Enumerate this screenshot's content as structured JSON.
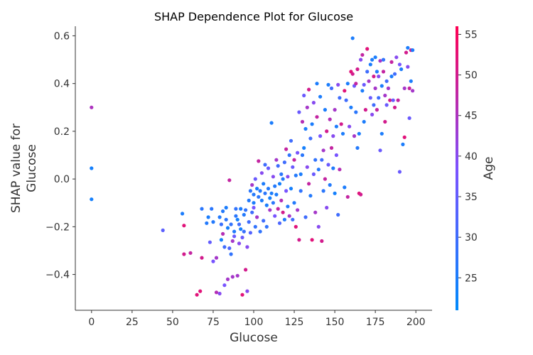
{
  "chart_data": {
    "type": "scatter",
    "title": "SHAP Dependence Plot for Glucose",
    "xlabel": "Glucose",
    "ylabel_line1": "SHAP value for",
    "ylabel_line2": "Glucose",
    "xlim": [
      -10,
      210
    ],
    "ylim": [
      -0.55,
      0.64
    ],
    "xticks": [
      0,
      25,
      50,
      75,
      100,
      125,
      150,
      175,
      200
    ],
    "yticks": [
      -0.4,
      -0.2,
      0.0,
      0.2,
      0.4,
      0.6
    ],
    "xtick_labels": [
      "0",
      "25",
      "50",
      "75",
      "100",
      "125",
      "150",
      "175",
      "200"
    ],
    "ytick_labels": [
      "−0.4",
      "−0.2",
      "0.0",
      "0.2",
      "0.4",
      "0.6"
    ],
    "grid": false,
    "colorbar": {
      "label": "Age",
      "range": [
        21,
        56
      ],
      "ticks": [
        25,
        30,
        35,
        40,
        45,
        50,
        55
      ],
      "tick_labels": [
        "25",
        "30",
        "35",
        "40",
        "45",
        "50",
        "55"
      ],
      "color_low": "#008afb",
      "color_mid": "#7c52ff",
      "color_high": "#ff0052"
    },
    "points": [
      [
        0,
        0.3,
        45
      ],
      [
        0,
        0.045,
        24
      ],
      [
        0,
        -0.085,
        24
      ],
      [
        44,
        -0.215,
        34
      ],
      [
        56,
        -0.145,
        25
      ],
      [
        57,
        -0.195,
        52
      ],
      [
        57,
        -0.315,
        50
      ],
      [
        61,
        -0.31,
        48
      ],
      [
        65,
        -0.485,
        52
      ],
      [
        67,
        -0.47,
        52
      ],
      [
        68,
        -0.33,
        50
      ],
      [
        68,
        -0.125,
        27
      ],
      [
        71,
        -0.185,
        26
      ],
      [
        72,
        -0.16,
        25
      ],
      [
        73,
        -0.265,
        35
      ],
      [
        74,
        -0.125,
        27
      ],
      [
        75,
        -0.18,
        26
      ],
      [
        75,
        -0.345,
        38
      ],
      [
        77,
        -0.475,
        46
      ],
      [
        77,
        -0.33,
        44
      ],
      [
        79,
        -0.16,
        26
      ],
      [
        79,
        -0.48,
        40
      ],
      [
        80,
        -0.19,
        29
      ],
      [
        80,
        -0.255,
        24
      ],
      [
        81,
        -0.135,
        26
      ],
      [
        81,
        -0.23,
        46
      ],
      [
        82,
        -0.285,
        30
      ],
      [
        82,
        -0.445,
        38
      ],
      [
        83,
        -0.17,
        27
      ],
      [
        83,
        -0.12,
        25
      ],
      [
        84,
        -0.205,
        24
      ],
      [
        84,
        -0.42,
        44
      ],
      [
        85,
        -0.29,
        32
      ],
      [
        85,
        -0.005,
        48
      ],
      [
        86,
        -0.19,
        28
      ],
      [
        86,
        -0.315,
        28
      ],
      [
        87,
        -0.41,
        44
      ],
      [
        87,
        -0.26,
        44
      ],
      [
        88,
        -0.24,
        36
      ],
      [
        88,
        -0.22,
        26
      ],
      [
        89,
        -0.155,
        27
      ],
      [
        89,
        -0.125,
        28
      ],
      [
        90,
        -0.17,
        24
      ],
      [
        90,
        -0.405,
        44
      ],
      [
        91,
        -0.19,
        30
      ],
      [
        91,
        -0.27,
        40
      ],
      [
        92,
        -0.21,
        24
      ],
      [
        92,
        -0.125,
        25
      ],
      [
        93,
        -0.245,
        36
      ],
      [
        93,
        -0.485,
        52
      ],
      [
        94,
        -0.15,
        26
      ],
      [
        94,
        -0.22,
        29
      ],
      [
        95,
        -0.38,
        50
      ],
      [
        95,
        -0.13,
        28
      ],
      [
        96,
        -0.47,
        40
      ],
      [
        96,
        -0.285,
        40
      ],
      [
        97,
        -0.09,
        26
      ],
      [
        97,
        -0.18,
        30
      ],
      [
        98,
        -0.05,
        27
      ],
      [
        98,
        -0.225,
        33
      ],
      [
        99,
        -0.025,
        44
      ],
      [
        99,
        -0.14,
        30
      ],
      [
        100,
        -0.065,
        26
      ],
      [
        100,
        -0.1,
        25
      ],
      [
        100,
        -0.12,
        38
      ],
      [
        101,
        -0.2,
        28
      ],
      [
        101,
        0.0,
        36
      ],
      [
        102,
        -0.04,
        25
      ],
      [
        102,
        -0.16,
        44
      ],
      [
        103,
        -0.075,
        27
      ],
      [
        103,
        0.075,
        48
      ],
      [
        104,
        -0.22,
        28
      ],
      [
        104,
        -0.05,
        26
      ],
      [
        105,
        -0.09,
        25
      ],
      [
        105,
        0.025,
        40
      ],
      [
        106,
        -0.02,
        25
      ],
      [
        106,
        -0.175,
        30
      ],
      [
        107,
        -0.06,
        27
      ],
      [
        107,
        0.06,
        30
      ],
      [
        108,
        -0.11,
        25
      ],
      [
        108,
        -0.2,
        28
      ],
      [
        109,
        -0.04,
        26
      ],
      [
        109,
        0.045,
        36
      ],
      [
        110,
        -0.08,
        24
      ],
      [
        110,
        -0.13,
        44
      ],
      [
        111,
        -0.06,
        25
      ],
      [
        111,
        0.235,
        25
      ],
      [
        112,
        -0.1,
        27
      ],
      [
        112,
        0.01,
        40
      ],
      [
        113,
        -0.03,
        26
      ],
      [
        113,
        -0.155,
        38
      ],
      [
        114,
        -0.065,
        25
      ],
      [
        114,
        0.08,
        44
      ],
      [
        115,
        -0.125,
        48
      ],
      [
        115,
        0.055,
        30
      ],
      [
        116,
        -0.02,
        24
      ],
      [
        116,
        -0.185,
        32
      ],
      [
        117,
        0.02,
        27
      ],
      [
        117,
        -0.09,
        46
      ],
      [
        118,
        -0.14,
        50
      ],
      [
        118,
        0.0,
        26
      ],
      [
        119,
        0.07,
        30
      ],
      [
        119,
        -0.17,
        26
      ],
      [
        120,
        -0.05,
        38
      ],
      [
        120,
        0.125,
        48
      ],
      [
        121,
        -0.115,
        26
      ],
      [
        121,
        0.01,
        40
      ],
      [
        122,
        -0.155,
        44
      ],
      [
        122,
        0.1,
        28
      ],
      [
        123,
        -0.04,
        24
      ],
      [
        123,
        0.16,
        30
      ],
      [
        124,
        -0.17,
        30
      ],
      [
        124,
        0.05,
        36
      ],
      [
        125,
        -0.1,
        26
      ],
      [
        125,
        0.08,
        48
      ],
      [
        126,
        -0.2,
        52
      ],
      [
        126,
        0.015,
        26
      ],
      [
        127,
        -0.13,
        44
      ],
      [
        127,
        0.11,
        38
      ],
      [
        128,
        -0.255,
        50
      ],
      [
        128,
        0.28,
        36
      ],
      [
        129,
        0.02,
        25
      ],
      [
        129,
        -0.05,
        28
      ],
      [
        130,
        0.1,
        27
      ],
      [
        130,
        0.24,
        46
      ],
      [
        131,
        0.35,
        36
      ],
      [
        131,
        0.13,
        24
      ],
      [
        132,
        -0.16,
        30
      ],
      [
        132,
        0.21,
        25
      ],
      [
        133,
        0.3,
        44
      ],
      [
        133,
        0.05,
        40
      ],
      [
        134,
        -0.02,
        48
      ],
      [
        134,
        0.375,
        50
      ],
      [
        135,
        0.17,
        30
      ],
      [
        135,
        -0.07,
        26
      ],
      [
        136,
        -0.255,
        52
      ],
      [
        136,
        0.23,
        25
      ],
      [
        137,
        0.02,
        36
      ],
      [
        137,
        0.32,
        40
      ],
      [
        138,
        0.08,
        28
      ],
      [
        138,
        -0.14,
        44
      ],
      [
        139,
        0.4,
        25
      ],
      [
        139,
        0.26,
        48
      ],
      [
        140,
        0.04,
        26
      ],
      [
        140,
        -0.2,
        40
      ],
      [
        141,
        0.18,
        38
      ],
      [
        141,
        0.345,
        25
      ],
      [
        142,
        -0.26,
        50
      ],
      [
        142,
        0.08,
        30
      ],
      [
        143,
        0.12,
        44
      ],
      [
        143,
        -0.05,
        27
      ],
      [
        144,
        0.29,
        25
      ],
      [
        144,
        0.0,
        48
      ],
      [
        145,
        0.2,
        50
      ],
      [
        145,
        -0.12,
        40
      ],
      [
        146,
        0.395,
        25
      ],
      [
        146,
        0.06,
        36
      ],
      [
        147,
        0.25,
        46
      ],
      [
        147,
        -0.025,
        26
      ],
      [
        148,
        0.13,
        48
      ],
      [
        148,
        0.38,
        30
      ],
      [
        149,
        0.18,
        40
      ],
      [
        149,
        0.045,
        26
      ],
      [
        150,
        0.29,
        44
      ],
      [
        150,
        -0.06,
        24
      ],
      [
        151,
        0.22,
        25
      ],
      [
        151,
        0.1,
        38
      ],
      [
        152,
        0.395,
        40
      ],
      [
        152,
        -0.15,
        30
      ],
      [
        153,
        0.04,
        46
      ],
      [
        153,
        0.34,
        30
      ],
      [
        154,
        0.23,
        50
      ],
      [
        155,
        0.19,
        25
      ],
      [
        156,
        0.37,
        52
      ],
      [
        156,
        -0.035,
        25
      ],
      [
        157,
        0.33,
        30
      ],
      [
        158,
        0.4,
        25
      ],
      [
        158,
        -0.075,
        48
      ],
      [
        159,
        0.22,
        40
      ],
      [
        160,
        0.45,
        52
      ],
      [
        160,
        0.3,
        25
      ],
      [
        161,
        0.59,
        25
      ],
      [
        161,
        0.44,
        50
      ],
      [
        162,
        0.18,
        44
      ],
      [
        162,
        0.39,
        36
      ],
      [
        163,
        0.4,
        48
      ],
      [
        163,
        0.28,
        27
      ],
      [
        164,
        0.46,
        50
      ],
      [
        164,
        0.13,
        26
      ],
      [
        165,
        0.19,
        25
      ],
      [
        165,
        -0.06,
        52
      ],
      [
        166,
        0.5,
        40
      ],
      [
        166,
        -0.065,
        50
      ],
      [
        167,
        0.37,
        25
      ],
      [
        167,
        0.52,
        48
      ],
      [
        168,
        0.395,
        36
      ],
      [
        168,
        0.24,
        25
      ],
      [
        169,
        0.29,
        50
      ],
      [
        170,
        0.545,
        52
      ],
      [
        170,
        0.45,
        30
      ],
      [
        171,
        0.41,
        44
      ],
      [
        172,
        0.48,
        25
      ],
      [
        172,
        0.34,
        36
      ],
      [
        173,
        0.5,
        25
      ],
      [
        173,
        0.27,
        40
      ],
      [
        174,
        0.43,
        50
      ],
      [
        174,
        0.31,
        30
      ],
      [
        175,
        0.51,
        25
      ],
      [
        175,
        0.38,
        44
      ],
      [
        176,
        0.29,
        48
      ],
      [
        176,
        0.45,
        26
      ],
      [
        177,
        0.43,
        40
      ],
      [
        177,
        0.34,
        30
      ],
      [
        178,
        0.495,
        44
      ],
      [
        178,
        0.12,
        36
      ],
      [
        179,
        0.39,
        25
      ],
      [
        179,
        0.19,
        25
      ],
      [
        180,
        0.5,
        28
      ],
      [
        180,
        0.45,
        48
      ],
      [
        181,
        0.35,
        44
      ],
      [
        181,
        0.24,
        50
      ],
      [
        182,
        0.31,
        36
      ],
      [
        182,
        0.41,
        30
      ],
      [
        183,
        0.38,
        44
      ],
      [
        184,
        0.33,
        50
      ],
      [
        185,
        0.43,
        25
      ],
      [
        185,
        0.49,
        48
      ],
      [
        186,
        0.33,
        36
      ],
      [
        187,
        0.44,
        30
      ],
      [
        187,
        0.3,
        50
      ],
      [
        188,
        0.51,
        40
      ],
      [
        189,
        0.33,
        48
      ],
      [
        190,
        0.48,
        38
      ],
      [
        190,
        0.03,
        36
      ],
      [
        191,
        0.46,
        25
      ],
      [
        192,
        0.145,
        25
      ],
      [
        193,
        0.38,
        44
      ],
      [
        193,
        0.175,
        52
      ],
      [
        194,
        0.53,
        50
      ],
      [
        195,
        0.55,
        25
      ],
      [
        195,
        0.47,
        40
      ],
      [
        196,
        0.38,
        48
      ],
      [
        196,
        0.255,
        36
      ],
      [
        197,
        0.54,
        50
      ],
      [
        197,
        0.41,
        25
      ],
      [
        198,
        0.54,
        25
      ],
      [
        198,
        0.37,
        44
      ]
    ]
  }
}
